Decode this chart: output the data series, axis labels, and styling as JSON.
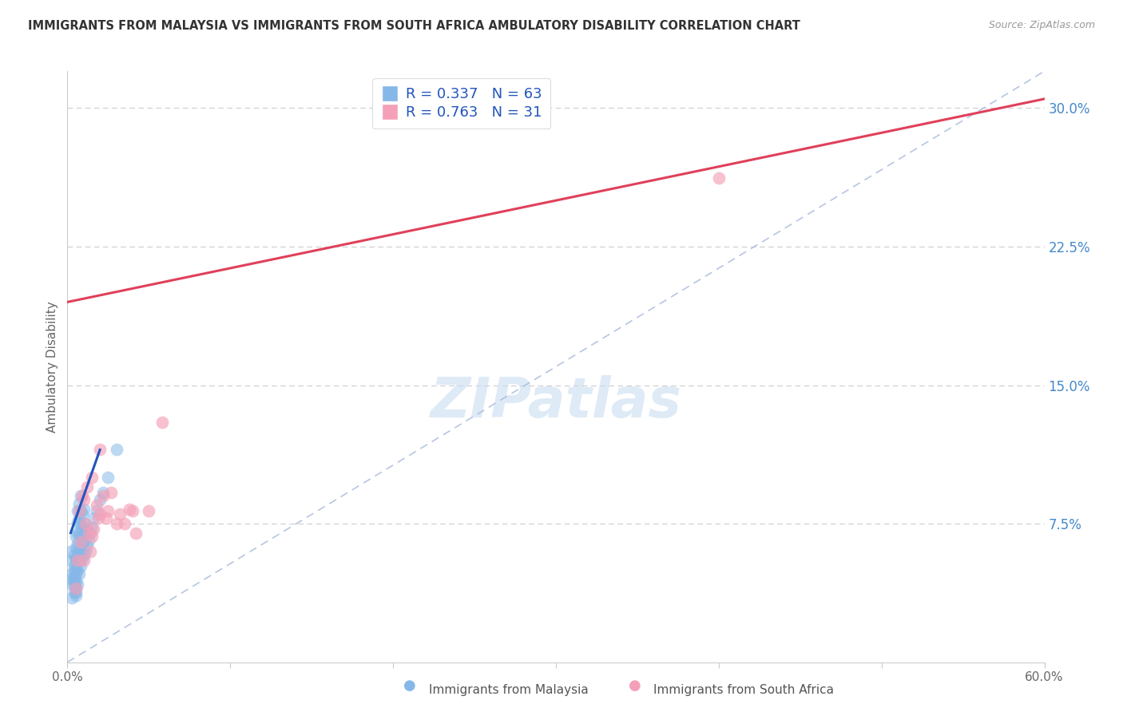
{
  "title": "IMMIGRANTS FROM MALAYSIA VS IMMIGRANTS FROM SOUTH AFRICA AMBULATORY DISABILITY CORRELATION CHART",
  "source": "Source: ZipAtlas.com",
  "ylabel": "Ambulatory Disability",
  "legend_malaysia": "Immigrants from Malaysia",
  "legend_south_africa": "Immigrants from South Africa",
  "R_malaysia": 0.337,
  "N_malaysia": 63,
  "R_south_africa": 0.763,
  "N_south_africa": 31,
  "xlim": [
    0.0,
    0.6
  ],
  "ylim": [
    0.0,
    0.32
  ],
  "yticks_right": [
    0.0,
    0.075,
    0.15,
    0.225,
    0.3
  ],
  "ytick_labels_right": [
    "",
    "7.5%",
    "15.0%",
    "22.5%",
    "30.0%"
  ],
  "xticks": [
    0.0,
    0.1,
    0.2,
    0.3,
    0.4,
    0.5,
    0.6
  ],
  "color_malaysia": "#85B8E8",
  "color_south_africa": "#F4A0B8",
  "color_trend_malaysia": "#2255BB",
  "color_trend_south_africa": "#E0405A",
  "color_ref_line": "#AABBDD",
  "watermark_text": "ZIPatlas",
  "malaysia_x": [
    0.002,
    0.003,
    0.003,
    0.003,
    0.003,
    0.003,
    0.004,
    0.004,
    0.004,
    0.004,
    0.004,
    0.004,
    0.004,
    0.005,
    0.005,
    0.005,
    0.005,
    0.005,
    0.005,
    0.005,
    0.005,
    0.005,
    0.005,
    0.006,
    0.006,
    0.006,
    0.006,
    0.006,
    0.006,
    0.006,
    0.007,
    0.007,
    0.007,
    0.007,
    0.007,
    0.007,
    0.008,
    0.008,
    0.008,
    0.008,
    0.008,
    0.008,
    0.009,
    0.009,
    0.009,
    0.009,
    0.01,
    0.01,
    0.01,
    0.01,
    0.011,
    0.011,
    0.012,
    0.012,
    0.013,
    0.014,
    0.015,
    0.016,
    0.018,
    0.02,
    0.022,
    0.025,
    0.03
  ],
  "malaysia_y": [
    0.06,
    0.045,
    0.055,
    0.035,
    0.048,
    0.042,
    0.038,
    0.046,
    0.052,
    0.058,
    0.042,
    0.05,
    0.044,
    0.036,
    0.04,
    0.048,
    0.055,
    0.062,
    0.068,
    0.044,
    0.05,
    0.056,
    0.038,
    0.042,
    0.05,
    0.058,
    0.064,
    0.07,
    0.076,
    0.082,
    0.048,
    0.055,
    0.062,
    0.07,
    0.078,
    0.086,
    0.052,
    0.06,
    0.068,
    0.075,
    0.082,
    0.09,
    0.056,
    0.065,
    0.073,
    0.08,
    0.058,
    0.066,
    0.075,
    0.083,
    0.06,
    0.07,
    0.063,
    0.072,
    0.066,
    0.07,
    0.073,
    0.078,
    0.082,
    0.088,
    0.092,
    0.1,
    0.115
  ],
  "south_africa_x": [
    0.005,
    0.006,
    0.007,
    0.008,
    0.009,
    0.01,
    0.01,
    0.011,
    0.012,
    0.013,
    0.014,
    0.015,
    0.015,
    0.016,
    0.018,
    0.019,
    0.02,
    0.02,
    0.022,
    0.024,
    0.025,
    0.027,
    0.03,
    0.032,
    0.035,
    0.038,
    0.04,
    0.042,
    0.05,
    0.058,
    0.4
  ],
  "south_africa_y": [
    0.04,
    0.055,
    0.082,
    0.065,
    0.09,
    0.055,
    0.088,
    0.075,
    0.095,
    0.07,
    0.06,
    0.068,
    0.1,
    0.072,
    0.085,
    0.078,
    0.08,
    0.115,
    0.09,
    0.078,
    0.082,
    0.092,
    0.075,
    0.08,
    0.075,
    0.083,
    0.082,
    0.07,
    0.082,
    0.13,
    0.262
  ],
  "sa_trend_x0": 0.0,
  "sa_trend_y0": 0.195,
  "sa_trend_x1": 0.6,
  "sa_trend_y1": 0.305,
  "malaysia_trend_x0": 0.002,
  "malaysia_trend_y0": 0.07,
  "malaysia_trend_x1": 0.02,
  "malaysia_trend_y1": 0.115,
  "ref_line_x0": 0.0,
  "ref_line_y0": 0.0,
  "ref_line_x1": 0.6,
  "ref_line_y1": 0.32
}
